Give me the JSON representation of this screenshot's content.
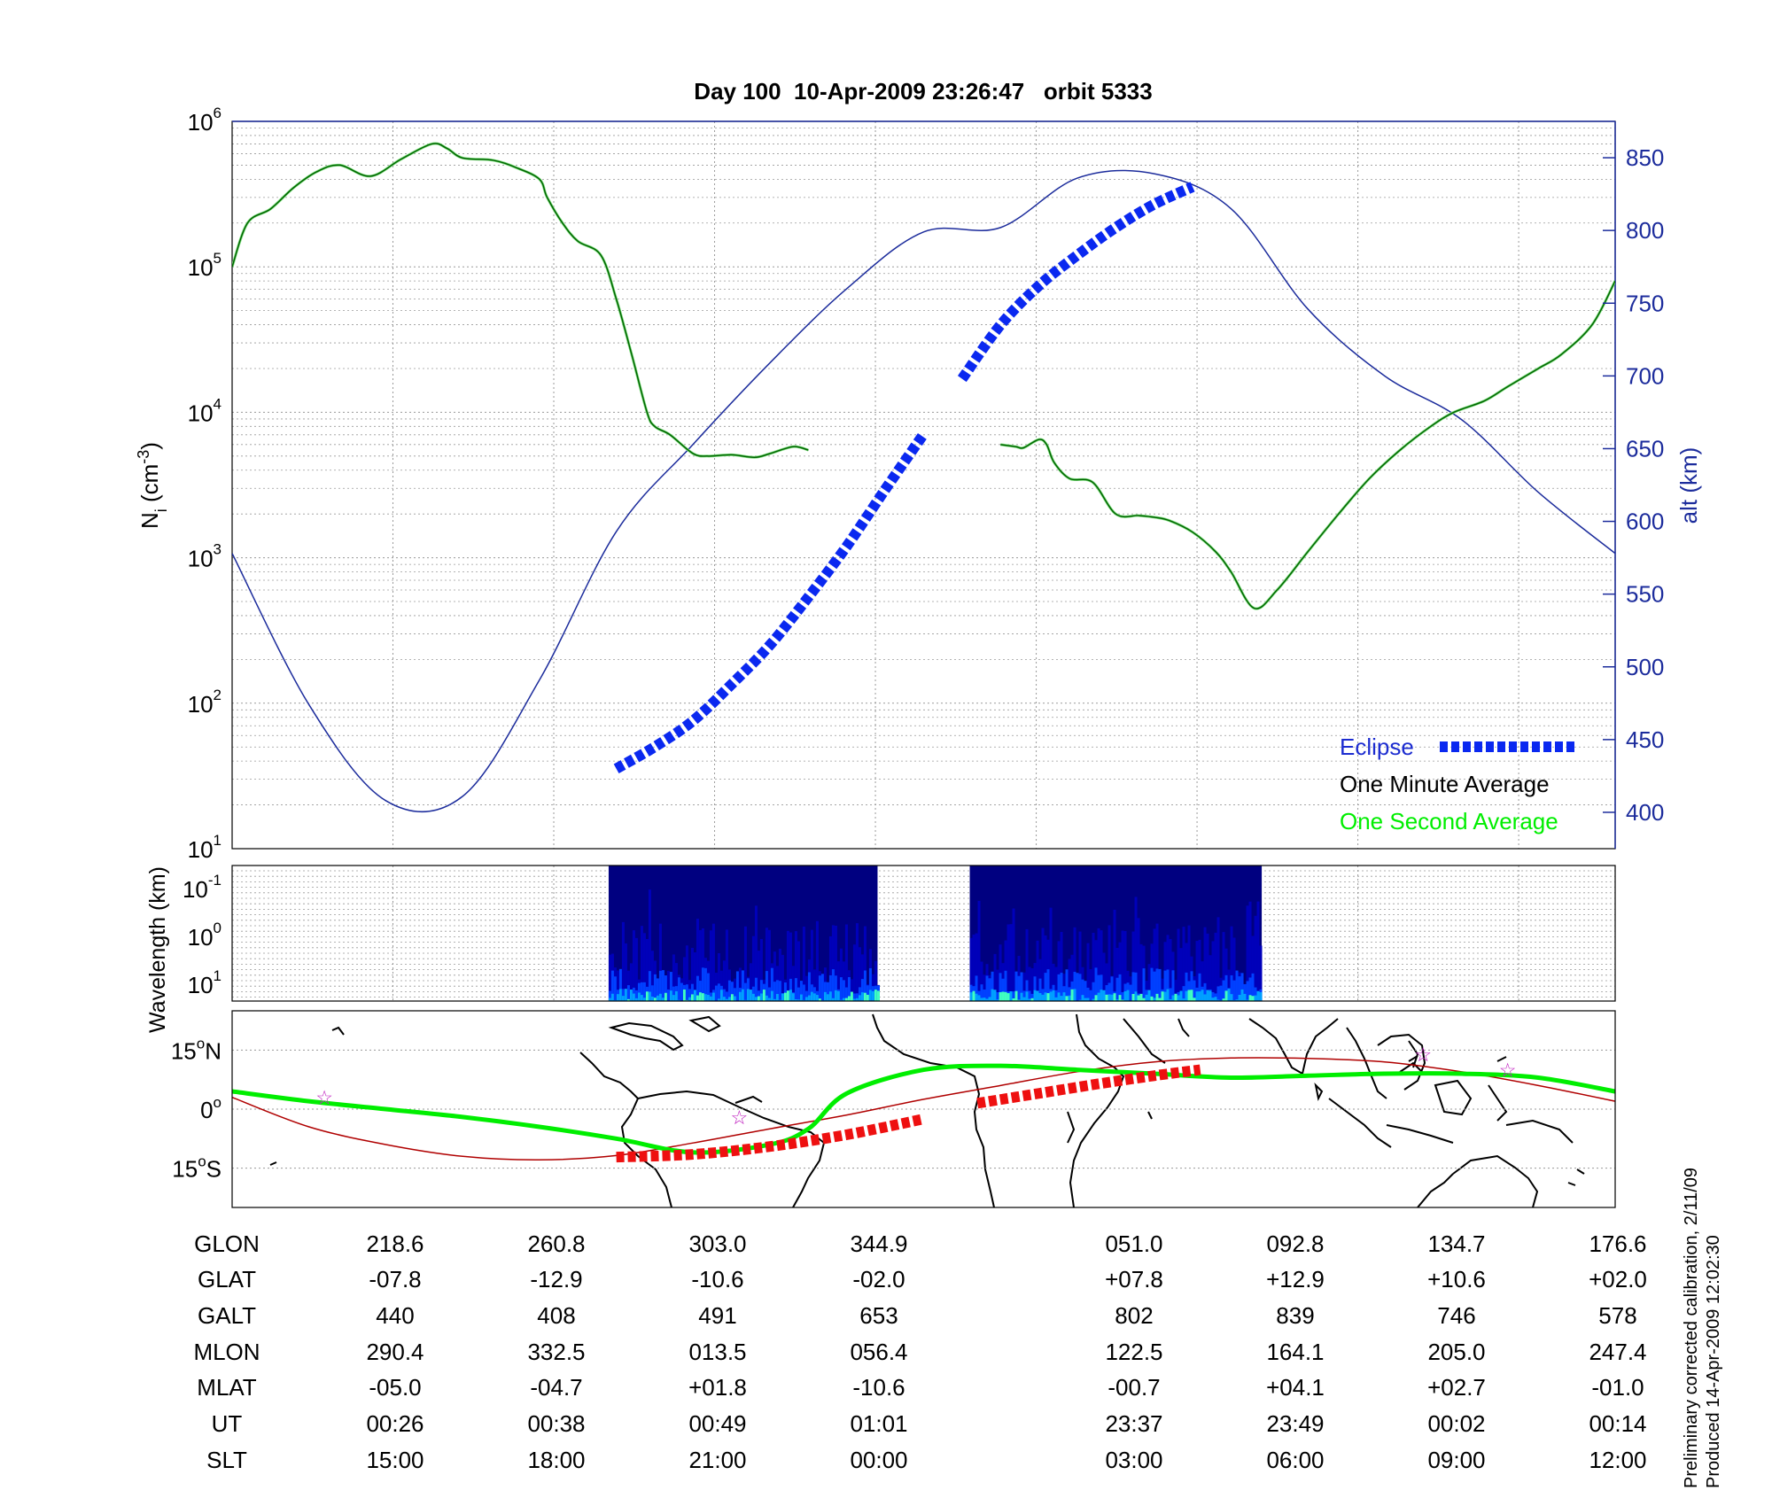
{
  "chart_data": [
    {
      "type": "line",
      "panel": "density-altitude",
      "title": "Day 100  10-Apr-2009 23:26:47   orbit 5333",
      "ylabel_left": {
        "main": "N",
        "sub": "i",
        "unit_pre": " (cm",
        "unit_exp": "-3",
        "unit_post": ")"
      },
      "ylabel_right": "alt (km)",
      "y_left_scale": "log",
      "y_left_range": [
        10,
        1000000
      ],
      "y_left_ticks": [
        {
          "base": "10",
          "exp": "1",
          "value": 10
        },
        {
          "base": "10",
          "exp": "2",
          "value": 100
        },
        {
          "base": "10",
          "exp": "3",
          "value": 1000
        },
        {
          "base": "10",
          "exp": "4",
          "value": 10000
        },
        {
          "base": "10",
          "exp": "5",
          "value": 100000
        },
        {
          "base": "10",
          "exp": "6",
          "value": 1000000
        }
      ],
      "y_right_range": [
        375,
        875
      ],
      "y_right_ticks": [
        "400",
        "450",
        "500",
        "550",
        "600",
        "650",
        "700",
        "750",
        "800",
        "850"
      ],
      "grid": true,
      "legend_position": "bottom-right",
      "legend": [
        {
          "label": "Eclipse",
          "color": "#0000ff"
        },
        {
          "label": "One Minute Average",
          "color": "#000000"
        },
        {
          "label": "One Second Average",
          "color": "#00ee00"
        }
      ],
      "density_series": [
        {
          "name": "One Minute Average",
          "color": "#006400",
          "x": [
            0,
            0.2,
            0.5,
            0.8,
            1.1,
            1.4,
            1.8,
            2.2,
            2.6,
            2.8,
            3.0,
            3.4,
            3.7,
            4.0,
            4.1,
            4.3,
            4.5,
            4.8,
            5.0,
            5.2,
            5.4,
            5.5,
            5.7,
            6.0,
            6.2,
            6.5,
            6.8,
            7.0,
            7.3,
            7.5
          ],
          "y": [
            100000,
            200000,
            250000,
            350000,
            450000,
            500000,
            420000,
            550000,
            700000,
            650000,
            560000,
            540000,
            480000,
            400000,
            300000,
            200000,
            150000,
            120000,
            60000,
            25000,
            10000,
            8000,
            7000,
            5200,
            5000,
            5100,
            4900,
            5200,
            5800,
            5500
          ]
        },
        {
          "name": "One Minute Average",
          "color": "#006400",
          "x": [
            10.0,
            10.2,
            10.3,
            10.5,
            10.6,
            10.7,
            10.9,
            11.2,
            11.5,
            11.8,
            12.0,
            12.2,
            12.5,
            12.8,
            13.0,
            13.3,
            13.6,
            14.0,
            14.4,
            14.8,
            15.2,
            15.6,
            15.9,
            16.3,
            16.6,
            17.0,
            17.3,
            17.7,
            18.0
          ],
          "y": [
            6000,
            5800,
            5700,
            6500,
            6000,
            4500,
            3500,
            3300,
            2000,
            1950,
            1900,
            1800,
            1500,
            1100,
            800,
            450,
            600,
            1100,
            2000,
            3500,
            5500,
            8000,
            10000,
            12000,
            15000,
            20000,
            25000,
            40000,
            80000
          ]
        }
      ],
      "altitude_series": {
        "name": "alt (km)",
        "color": "#1c2c9c",
        "x": [
          0,
          1,
          2,
          3,
          4,
          5,
          6,
          7,
          8,
          9,
          10,
          11,
          12,
          13,
          14,
          15,
          16,
          17,
          18
        ],
        "y": [
          578,
          474,
          408,
          411,
          491,
          593,
          653,
          709,
          760,
          799,
          802,
          836,
          839,
          815,
          746,
          700,
          670,
          620,
          578
        ]
      },
      "eclipse_segments": [
        {
          "x": [
            5.0,
            5.5,
            6.0,
            6.5,
            7.0,
            7.5,
            8.0,
            8.5,
            9.0
          ],
          "y": [
            430,
            445,
            463,
            488,
            515,
            548,
            583,
            622,
            660
          ]
        },
        {
          "x": [
            9.5,
            10.0,
            10.5,
            11.0,
            11.5,
            12.0,
            12.5
          ],
          "y": [
            698,
            735,
            762,
            783,
            802,
            818,
            830
          ]
        }
      ]
    },
    {
      "type": "heatmap",
      "panel": "spectrogram",
      "ylabel": "Wavelength (km)",
      "y_ticks": [
        {
          "base": "10",
          "exp": "-1"
        },
        {
          "base": "10",
          "exp": "0"
        },
        {
          "base": "10",
          "exp": "1"
        }
      ],
      "data_blocks_x": [
        [
          4.9,
          8.4
        ],
        [
          9.6,
          13.4
        ]
      ],
      "colormap": [
        "#000080",
        "#0000c0",
        "#0040ff",
        "#00a0ff",
        "#40ffc0"
      ]
    },
    {
      "type": "line",
      "panel": "ground-track-map",
      "y_ticks": [
        {
          "deg": "15",
          "sup": "o",
          "hemi": "N",
          "value": 15
        },
        {
          "deg": "0",
          "sup": "o",
          "hemi": "",
          "value": 0
        },
        {
          "deg": "15",
          "sup": "o",
          "hemi": "S",
          "value": -15
        }
      ],
      "y_range": [
        -25,
        25
      ],
      "satellite_track": {
        "color": "#b00000",
        "x": [
          0,
          1,
          2,
          3,
          4,
          5,
          6,
          7,
          8,
          9,
          10,
          11,
          12,
          13,
          14,
          15,
          16,
          17,
          18
        ],
        "y": [
          3,
          -4.5,
          -9,
          -12,
          -12.9,
          -11.8,
          -8.6,
          -5,
          -1.5,
          2.5,
          6,
          9.5,
          12,
          13,
          12.9,
          12,
          9.5,
          6,
          2
        ]
      },
      "magnetic_equator": {
        "color": "#00ee00",
        "x": [
          0,
          1,
          2,
          3,
          4,
          5,
          6,
          7,
          7.5,
          8,
          9,
          10,
          11,
          12,
          13,
          14,
          15,
          16,
          17,
          18
        ],
        "y": [
          4.5,
          2,
          0,
          -2,
          -4.5,
          -7.5,
          -11,
          -9,
          -5,
          4,
          10,
          11,
          10,
          9,
          8,
          8.5,
          9,
          9,
          8,
          4.5
        ]
      },
      "eclipse_segments": [
        {
          "x": [
            5.0,
            6.0,
            7.0,
            8.0,
            9.0
          ],
          "y": [
            -12.2,
            -11.5,
            -9.5,
            -6.5,
            -2.5
          ]
        },
        {
          "x": [
            9.7,
            10.5,
            11.3,
            12.0,
            12.6
          ],
          "y": [
            1.5,
            4,
            6.5,
            8.5,
            10
          ]
        }
      ],
      "stars": [
        {
          "x": 1.2,
          "y": 3,
          "color": "#c020c0"
        },
        {
          "x": 6.6,
          "y": -2,
          "color": "#c020c0"
        },
        {
          "x": 15.5,
          "y": 14,
          "color": "#c020c0"
        },
        {
          "x": 16.6,
          "y": 10,
          "color": "#c020c0"
        }
      ]
    }
  ],
  "ephemeris": {
    "row_labels": [
      "GLON",
      "GLAT",
      "GALT",
      "MLON",
      "MLAT",
      "UT",
      "SLT"
    ],
    "columns": [
      [
        "218.6",
        "-07.8",
        "440",
        "290.4",
        "-05.0",
        "00:26",
        "15:00"
      ],
      [
        "260.8",
        "-12.9",
        "408",
        "332.5",
        "-04.7",
        "00:38",
        "18:00"
      ],
      [
        "303.0",
        "-10.6",
        "491",
        "013.5",
        "+01.8",
        "00:49",
        "21:00"
      ],
      [
        "344.9",
        "-02.0",
        "653",
        "056.4",
        "-10.6",
        "01:01",
        "00:00"
      ],
      [
        "051.0",
        "+07.8",
        "802",
        "122.5",
        "-00.7",
        "23:37",
        "03:00"
      ],
      [
        "092.8",
        "+12.9",
        "839",
        "164.1",
        "+04.1",
        "23:49",
        "06:00"
      ],
      [
        "134.7",
        "+10.6",
        "746",
        "205.0",
        "+02.7",
        "00:02",
        "09:00"
      ],
      [
        "176.6",
        "+02.0",
        "578",
        "247.4",
        "-01.0",
        "00:14",
        "12:00"
      ]
    ]
  },
  "footer": {
    "line1": "Preliminary corrected calibration, 2/11/09",
    "line2": "Produced 14-Apr-2009 12:02:30"
  }
}
